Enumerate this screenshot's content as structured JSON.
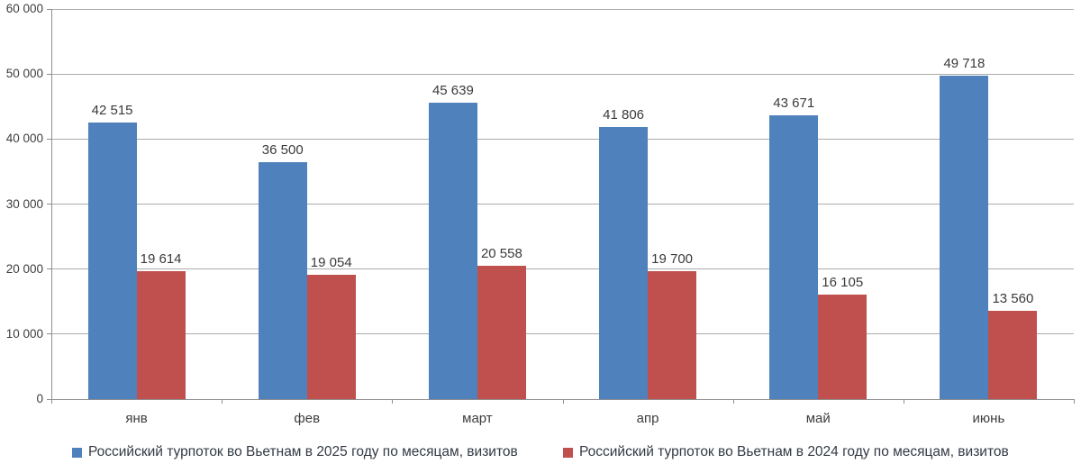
{
  "chart_data": {
    "type": "bar",
    "title": "",
    "xlabel": "",
    "ylabel": "",
    "categories": [
      "янв",
      "фев",
      "март",
      "апр",
      "май",
      "июнь"
    ],
    "series": [
      {
        "name": "Российский турпоток во Вьетнам в 2025 году по месяцам, визитов",
        "color": "#4F81BD",
        "values": [
          42515,
          36500,
          45639,
          41806,
          43671,
          49718
        ],
        "labels": [
          "42 515",
          "36 500",
          "45 639",
          "41 806",
          "43 671",
          "49 718"
        ]
      },
      {
        "name": "Российский турпоток во Вьетнам в 2024 году по месяцам, визитов",
        "color": "#C0504D",
        "values": [
          19614,
          19054,
          20558,
          19700,
          16105,
          13560
        ],
        "labels": [
          "19 614",
          "19 054",
          "20 558",
          "19 700",
          "16 105",
          "13 560"
        ]
      }
    ],
    "ylim": [
      0,
      60000
    ],
    "ytick_interval": 10000,
    "yticks": [
      "0",
      "10 000",
      "20 000",
      "30 000",
      "40 000",
      "50 000",
      "60 000"
    ],
    "grid": "horizontal",
    "legend_position": "bottom",
    "gridline_color": "#ABABAB",
    "axis_color": "#8E8E8E",
    "label_color": "#3A3A3A"
  }
}
